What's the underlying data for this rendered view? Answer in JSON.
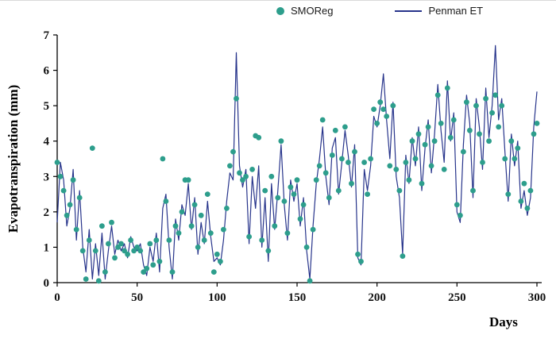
{
  "colors": {
    "smoreg": "#2d9e8c",
    "penman": "#27348b",
    "axis": "#000000"
  },
  "chart_data": {
    "type": "line",
    "title": "",
    "xlabel": "Days",
    "ylabel": "Evapotranspiration (mm)",
    "xlim": [
      0,
      300
    ],
    "ylim": [
      0,
      7
    ],
    "xticks": [
      0,
      50,
      100,
      150,
      200,
      250,
      300
    ],
    "yticks": [
      0,
      1,
      2,
      3,
      4,
      5,
      6,
      7
    ],
    "grid": false,
    "legend_position": "top-center",
    "x": [
      0,
      2,
      4,
      6,
      8,
      10,
      12,
      14,
      16,
      18,
      20,
      22,
      24,
      26,
      28,
      30,
      32,
      34,
      36,
      38,
      40,
      42,
      44,
      46,
      48,
      50,
      52,
      54,
      56,
      58,
      60,
      62,
      64,
      66,
      68,
      70,
      72,
      74,
      76,
      78,
      80,
      82,
      84,
      86,
      88,
      90,
      92,
      94,
      96,
      98,
      100,
      102,
      104,
      106,
      108,
      110,
      112,
      114,
      116,
      118,
      120,
      122,
      124,
      126,
      128,
      130,
      132,
      134,
      136,
      138,
      140,
      142,
      144,
      146,
      148,
      150,
      152,
      154,
      156,
      158,
      160,
      162,
      164,
      166,
      168,
      170,
      172,
      174,
      176,
      178,
      180,
      182,
      184,
      186,
      188,
      190,
      192,
      194,
      196,
      198,
      200,
      202,
      204,
      206,
      208,
      210,
      212,
      214,
      216,
      218,
      220,
      222,
      224,
      226,
      228,
      230,
      232,
      234,
      236,
      238,
      240,
      242,
      244,
      246,
      248,
      250,
      252,
      254,
      256,
      258,
      260,
      262,
      264,
      266,
      268,
      270,
      272,
      274,
      276,
      278,
      280,
      282,
      284,
      286,
      288,
      290,
      292,
      294,
      296,
      298,
      300
    ],
    "series": [
      {
        "name": "SMOReg",
        "style": "scatter",
        "color": "#2d9e8c",
        "values": [
          3.4,
          3.0,
          2.6,
          1.9,
          2.2,
          2.9,
          1.5,
          2.4,
          0.9,
          0.1,
          1.2,
          3.8,
          0.9,
          0.05,
          1.6,
          0.3,
          1.1,
          1.7,
          0.7,
          1.0,
          1.1,
          0.9,
          0.8,
          1.2,
          0.9,
          1.0,
          0.9,
          0.3,
          0.4,
          1.1,
          0.5,
          1.2,
          0.6,
          3.5,
          2.3,
          1.2,
          0.3,
          1.6,
          1.4,
          2.0,
          2.9,
          2.9,
          1.6,
          2.2,
          1.0,
          1.9,
          1.2,
          2.5,
          1.4,
          0.3,
          0.8,
          0.6,
          1.5,
          2.1,
          3.3,
          3.7,
          5.2,
          3.1,
          2.9,
          3.0,
          1.3,
          3.2,
          4.15,
          4.1,
          1.2,
          2.6,
          0.9,
          3.0,
          1.6,
          2.4,
          4.0,
          2.3,
          1.4,
          2.7,
          2.5,
          2.9,
          1.8,
          2.2,
          1.0,
          0.05,
          1.5,
          2.9,
          3.3,
          4.6,
          3.1,
          2.4,
          3.6,
          4.3,
          2.6,
          3.5,
          4.4,
          3.4,
          2.8,
          3.7,
          0.8,
          0.6,
          3.4,
          2.5,
          3.5,
          4.9,
          4.5,
          5.1,
          4.9,
          4.7,
          3.3,
          5.0,
          3.2,
          2.6,
          0.75,
          3.4,
          2.9,
          4.0,
          3.5,
          4.2,
          2.8,
          3.9,
          4.4,
          3.3,
          4.0,
          5.3,
          4.5,
          3.2,
          5.5,
          4.1,
          4.6,
          2.2,
          1.9,
          3.7,
          5.1,
          4.3,
          2.6,
          5.0,
          4.2,
          3.4,
          5.2,
          4.0,
          4.8,
          5.3,
          4.4,
          5.0,
          3.5,
          2.5,
          4.0,
          3.5,
          3.8,
          2.3,
          2.8,
          2.1,
          2.6,
          4.2,
          4.5
        ]
      },
      {
        "name": "Penman ET",
        "style": "line",
        "color": "#27348b",
        "values": [
          1.7,
          3.4,
          2.9,
          1.6,
          2.1,
          3.2,
          1.2,
          2.6,
          1.0,
          0.3,
          1.5,
          0.1,
          1.1,
          0.2,
          1.4,
          0.1,
          0.9,
          1.6,
          0.8,
          1.2,
          0.9,
          1.1,
          0.7,
          1.3,
          1.0,
          0.9,
          1.1,
          0.5,
          0.2,
          1.0,
          0.6,
          1.4,
          0.3,
          2.1,
          2.5,
          1.0,
          0.1,
          1.8,
          1.2,
          2.2,
          1.9,
          2.8,
          1.5,
          2.4,
          0.8,
          1.7,
          1.1,
          2.3,
          1.3,
          0.6,
          0.7,
          0.5,
          1.2,
          2.3,
          3.1,
          2.9,
          6.5,
          3.3,
          2.7,
          3.2,
          1.1,
          3.0,
          2.1,
          3.3,
          1.0,
          2.4,
          0.6,
          2.8,
          1.5,
          2.6,
          3.9,
          2.2,
          1.2,
          2.9,
          2.3,
          2.8,
          1.6,
          2.4,
          0.9,
          0.1,
          1.6,
          2.8,
          3.5,
          4.4,
          3.0,
          2.2,
          3.8,
          4.1,
          2.5,
          3.4,
          4.3,
          3.6,
          2.7,
          3.9,
          0.7,
          0.5,
          3.2,
          2.6,
          3.3,
          4.7,
          4.4,
          5.0,
          5.9,
          4.6,
          3.5,
          5.1,
          3.0,
          2.4,
          0.8,
          3.6,
          2.8,
          4.1,
          3.3,
          4.4,
          2.6,
          3.8,
          4.6,
          3.1,
          4.2,
          5.6,
          4.3,
          3.4,
          5.7,
          4.0,
          4.8,
          2.0,
          1.7,
          3.9,
          5.3,
          4.5,
          2.4,
          5.2,
          4.4,
          3.2,
          5.5,
          4.1,
          5.0,
          6.7,
          4.6,
          5.2,
          3.7,
          2.3,
          4.2,
          3.3,
          4.0,
          2.1,
          2.6,
          1.9,
          2.4,
          4.4,
          5.4
        ]
      }
    ]
  }
}
